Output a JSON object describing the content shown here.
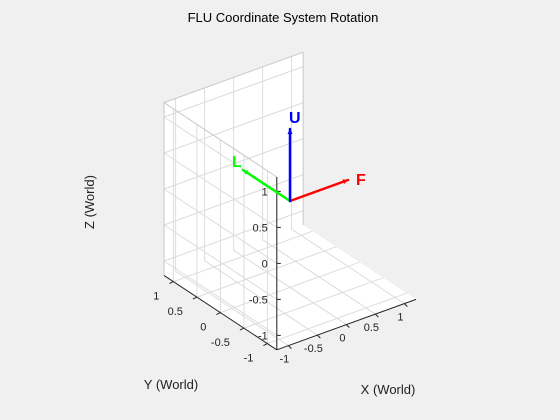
{
  "chart_data": {
    "type": "line",
    "title": "FLU Coordinate System Rotation",
    "xlabel": "X (World)",
    "ylabel": "Y (World)",
    "zlabel": "Z (World)",
    "xlim": [
      -1.2,
      1.2
    ],
    "ylim": [
      -1.2,
      1.2
    ],
    "zlim": [
      -1.2,
      1.2
    ],
    "x_ticks": [
      "-1",
      "-0.5",
      "0",
      "0.5",
      "1"
    ],
    "y_ticks": [
      "-1",
      "-0.5",
      "0",
      "0.5",
      "1"
    ],
    "z_ticks": [
      "-1",
      "-0.5",
      "0",
      "0.5",
      "1"
    ],
    "grid": true,
    "origin": [
      0,
      0,
      0
    ],
    "series": [
      {
        "name": "F",
        "color": "#ff0000",
        "vector": [
          1,
          0,
          0
        ]
      },
      {
        "name": "L",
        "color": "#00ff00",
        "vector": [
          0,
          1,
          0
        ]
      },
      {
        "name": "U",
        "color": "#0000ff",
        "vector": [
          0,
          0,
          1
        ]
      }
    ]
  }
}
